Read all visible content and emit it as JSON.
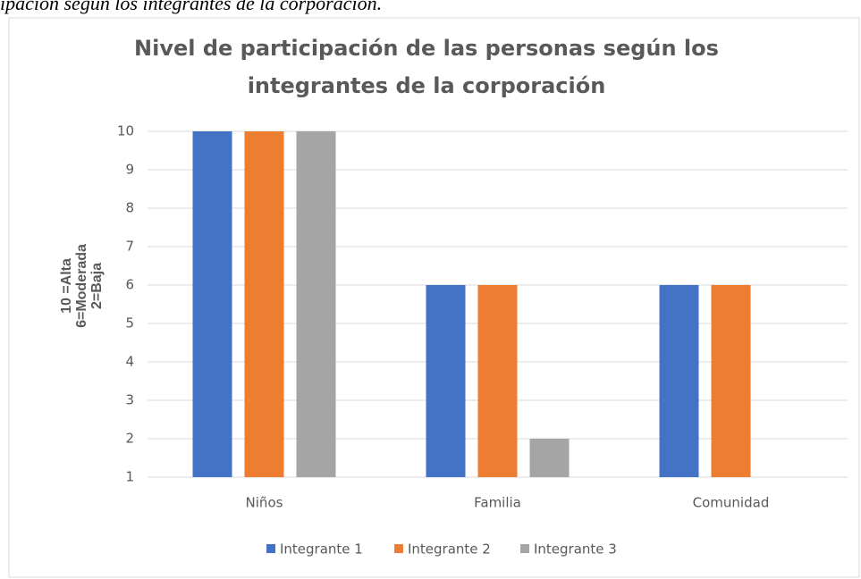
{
  "caption": "ipación según los integrantes de la corporación.",
  "chart_data": {
    "type": "bar",
    "title": [
      "Nivel de participación de las personas según los",
      "integrantes de la corporación"
    ],
    "y_label": [
      "10 =Alta",
      "6=Moderada",
      "2=Baja"
    ],
    "categories": [
      "Niños",
      "Familia",
      "Comunidad"
    ],
    "series": [
      {
        "name": "Integrante 1",
        "color": "#4472c4",
        "values": [
          10,
          6,
          6
        ]
      },
      {
        "name": "Integrante 2",
        "color": "#ed7d31",
        "values": [
          10,
          6,
          6
        ]
      },
      {
        "name": "Integrante 3",
        "color": "#a5a5a5",
        "values": [
          10,
          2,
          null
        ]
      }
    ],
    "ylim": [
      1,
      10
    ],
    "yticks": [
      1,
      2,
      3,
      4,
      5,
      6,
      7,
      8,
      9,
      10
    ],
    "grid": true,
    "legend": "bottom"
  }
}
